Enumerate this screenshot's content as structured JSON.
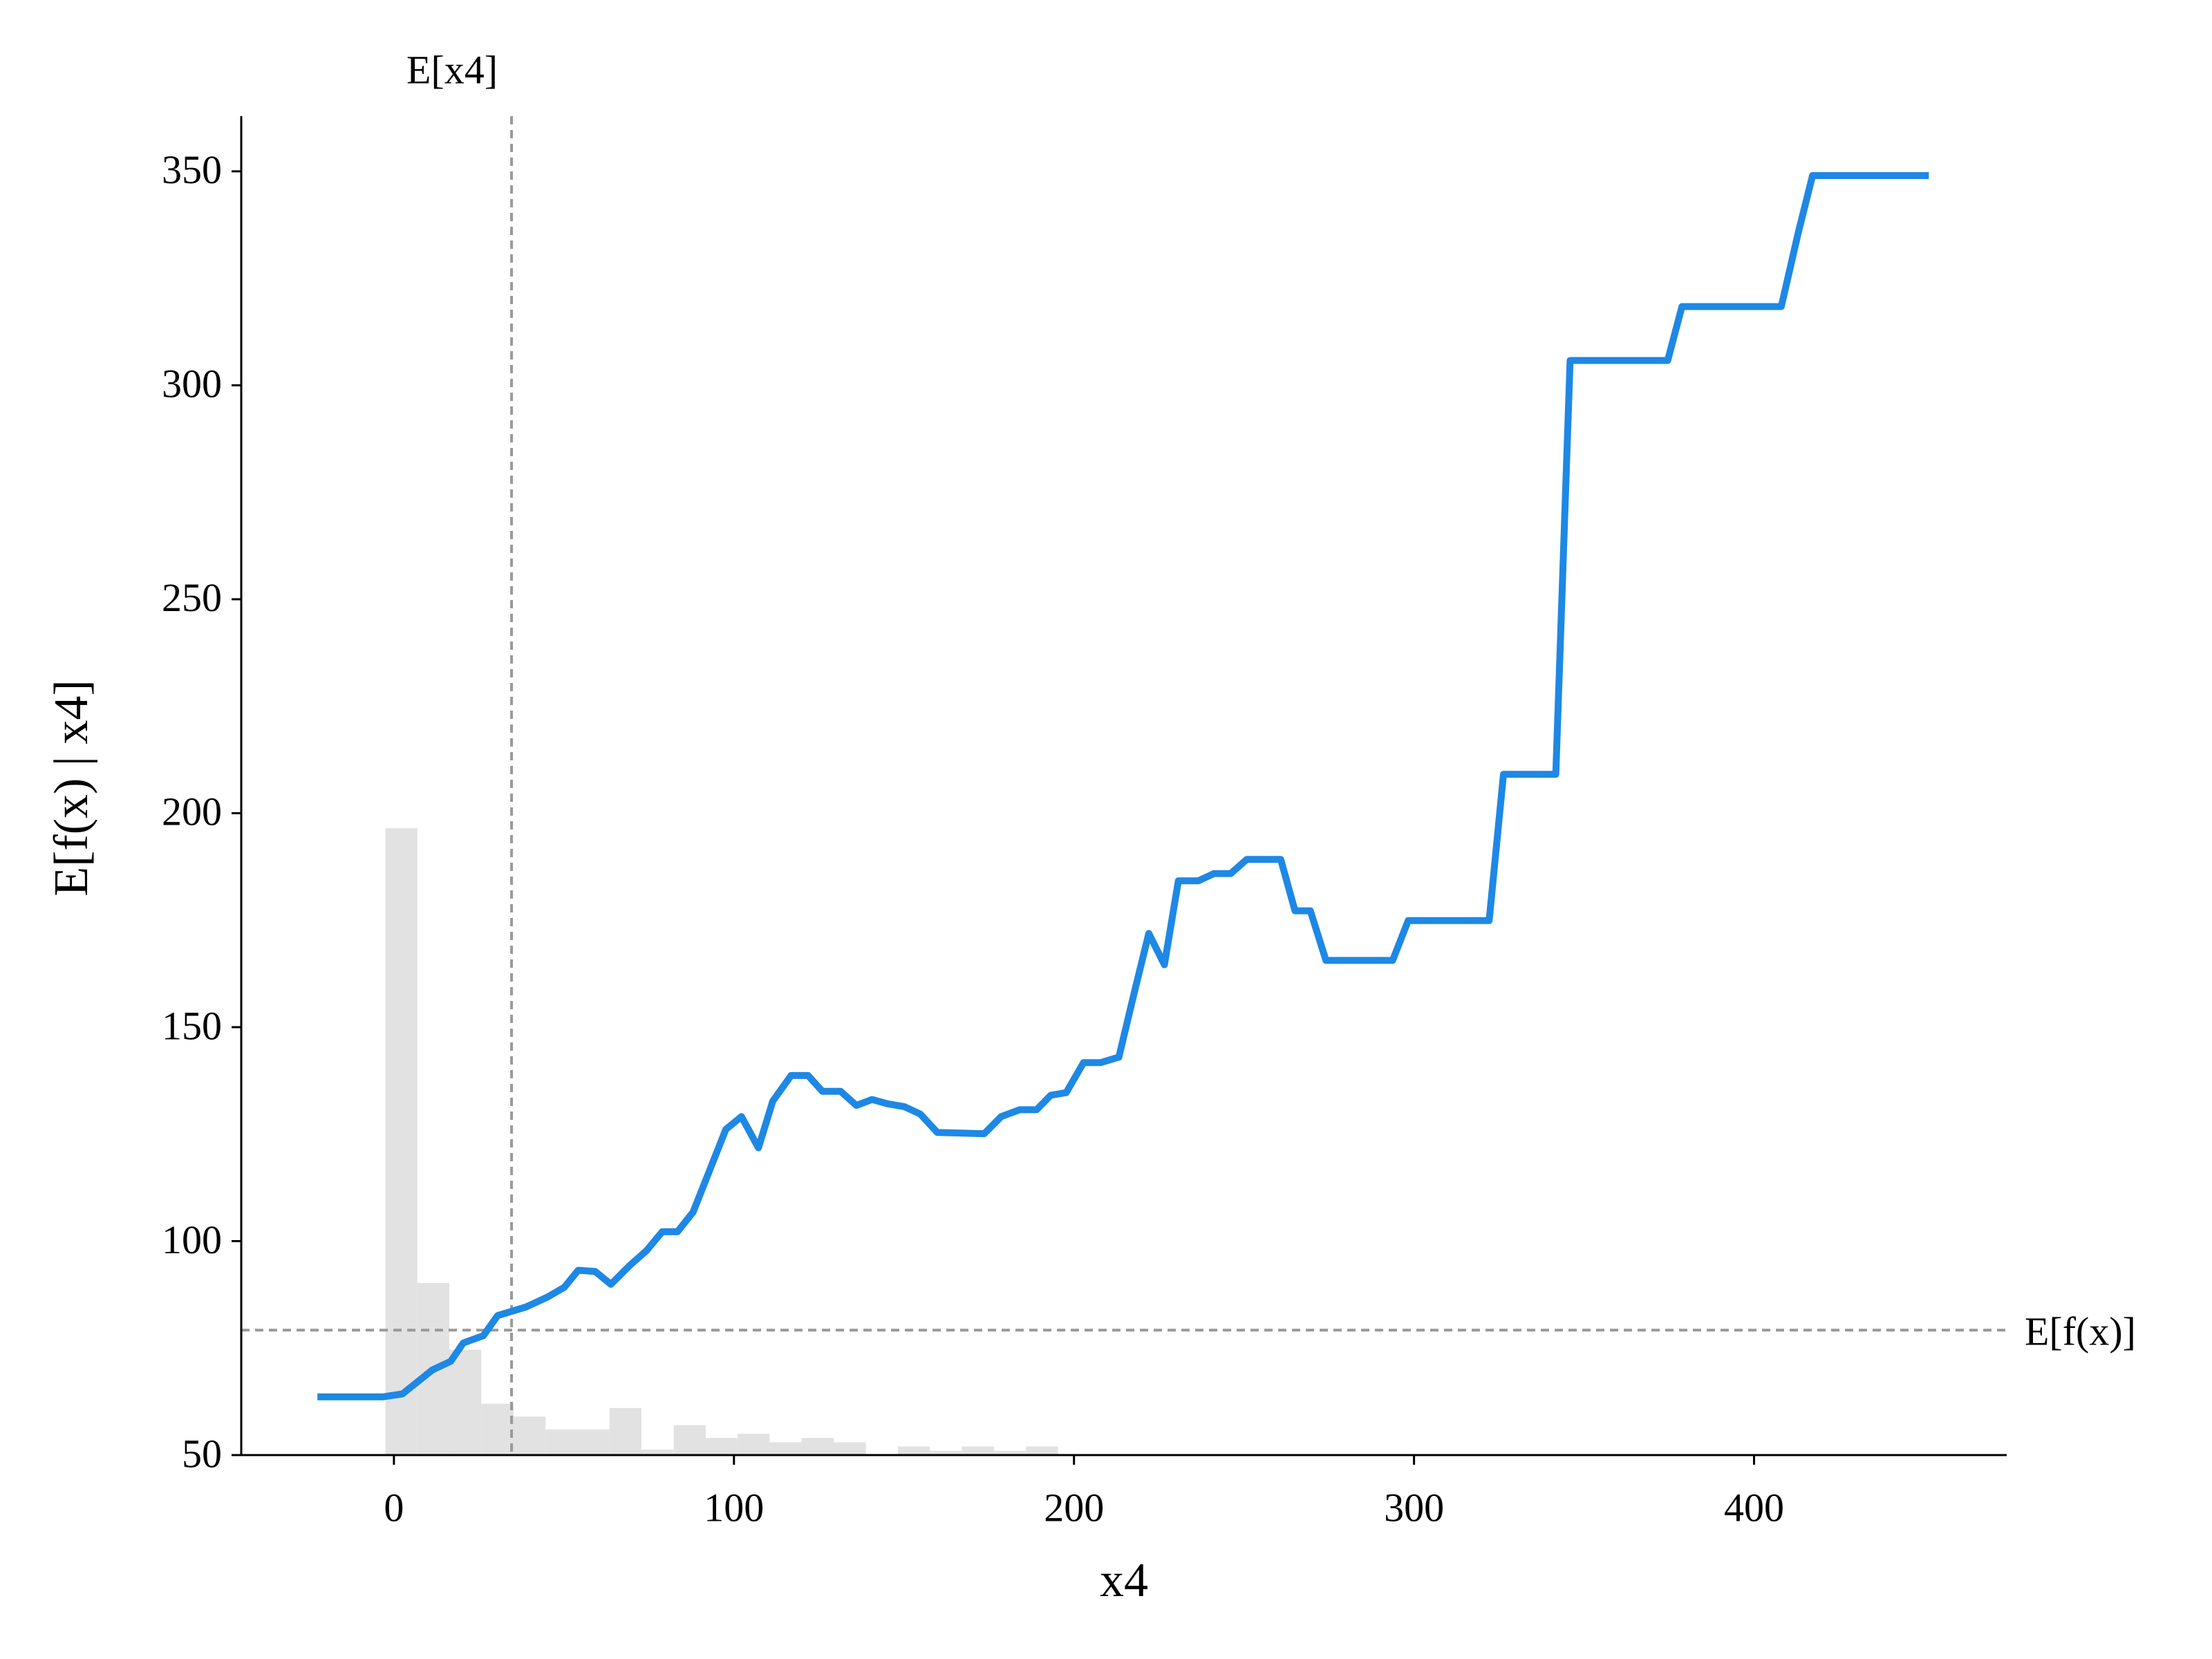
{
  "chart_data": {
    "type": "line",
    "xlabel": "x4",
    "ylabel": "E[f(x) | x4]",
    "xlim": [
      -44.9,
      474.3
    ],
    "ylim": [
      50,
      362.9
    ],
    "xticks": [
      0,
      100,
      200,
      300,
      400
    ],
    "yticks": [
      50,
      100,
      150,
      200,
      250,
      300,
      350
    ],
    "x": [
      -22.5,
      -3.3,
      2.5,
      11.3,
      16.7,
      20.4,
      26.3,
      30.5,
      38.8,
      45.1,
      50.1,
      54.2,
      59.2,
      63.8,
      69.2,
      74.3,
      78.9,
      83.4,
      88.0,
      97.6,
      102.2,
      107.2,
      111.4,
      116.8,
      121.8,
      126.0,
      131.4,
      136.0,
      140.6,
      145.2,
      150.2,
      154.8,
      159.8,
      173.6,
      178.6,
      184.0,
      189.0,
      193.2,
      197.7,
      202.8,
      207.8,
      213.2,
      217.8,
      222.0,
      226.6,
      230.7,
      236.6,
      241.2,
      246.1,
      250.8,
      260.8,
      265.0,
      269.5,
      274.1,
      293.7,
      298.3,
      322.1,
      326.3,
      341.7,
      345.9,
      374.6,
      378.8,
      408.0,
      413.0,
      417.2,
      451.4
    ],
    "series": [
      {
        "color": "#1e88e5",
        "values": [
          63.6,
          63.6,
          64.3,
          69.9,
          71.9,
          76.2,
          77.9,
          82.6,
          84.6,
          86.9,
          89.2,
          93.2,
          92.9,
          89.9,
          94.2,
          97.8,
          102.2,
          102.2,
          106.8,
          126.1,
          129.1,
          121.8,
          132.7,
          138.7,
          138.7,
          135.0,
          135.0,
          131.7,
          133.1,
          132.1,
          131.4,
          129.7,
          125.4,
          125.1,
          129.1,
          130.7,
          130.7,
          134.1,
          134.7,
          141.7,
          141.7,
          143.0,
          158.3,
          171.9,
          164.6,
          184.2,
          184.2,
          185.9,
          185.9,
          189.2,
          189.2,
          177.2,
          177.2,
          165.6,
          165.6,
          174.9,
          174.9,
          209.1,
          209.1,
          305.8,
          305.8,
          318.4,
          318.4,
          335.7,
          349.0,
          349.0
        ]
      }
    ],
    "histogram": {
      "color": "#e2e2e2",
      "bins": [
        -2.5,
        6.9,
        16.3,
        25.7,
        35.2,
        44.6,
        54.0,
        63.4,
        72.8,
        82.3,
        91.7,
        101.1,
        110.5,
        119.9,
        129.4,
        138.8,
        148.2,
        157.6,
        167.0,
        176.5,
        185.9,
        195.3
      ],
      "values": [
        196.5,
        90.2,
        74.6,
        62,
        59,
        56,
        56,
        61,
        51.3,
        57,
        54,
        55,
        53,
        54,
        53,
        50,
        52,
        51,
        52,
        51,
        52
      ]
    },
    "vline": {
      "value": 34.6,
      "label": "E[x4]"
    },
    "hline": {
      "value": 79.2,
      "label": "E[f(x)]"
    }
  }
}
